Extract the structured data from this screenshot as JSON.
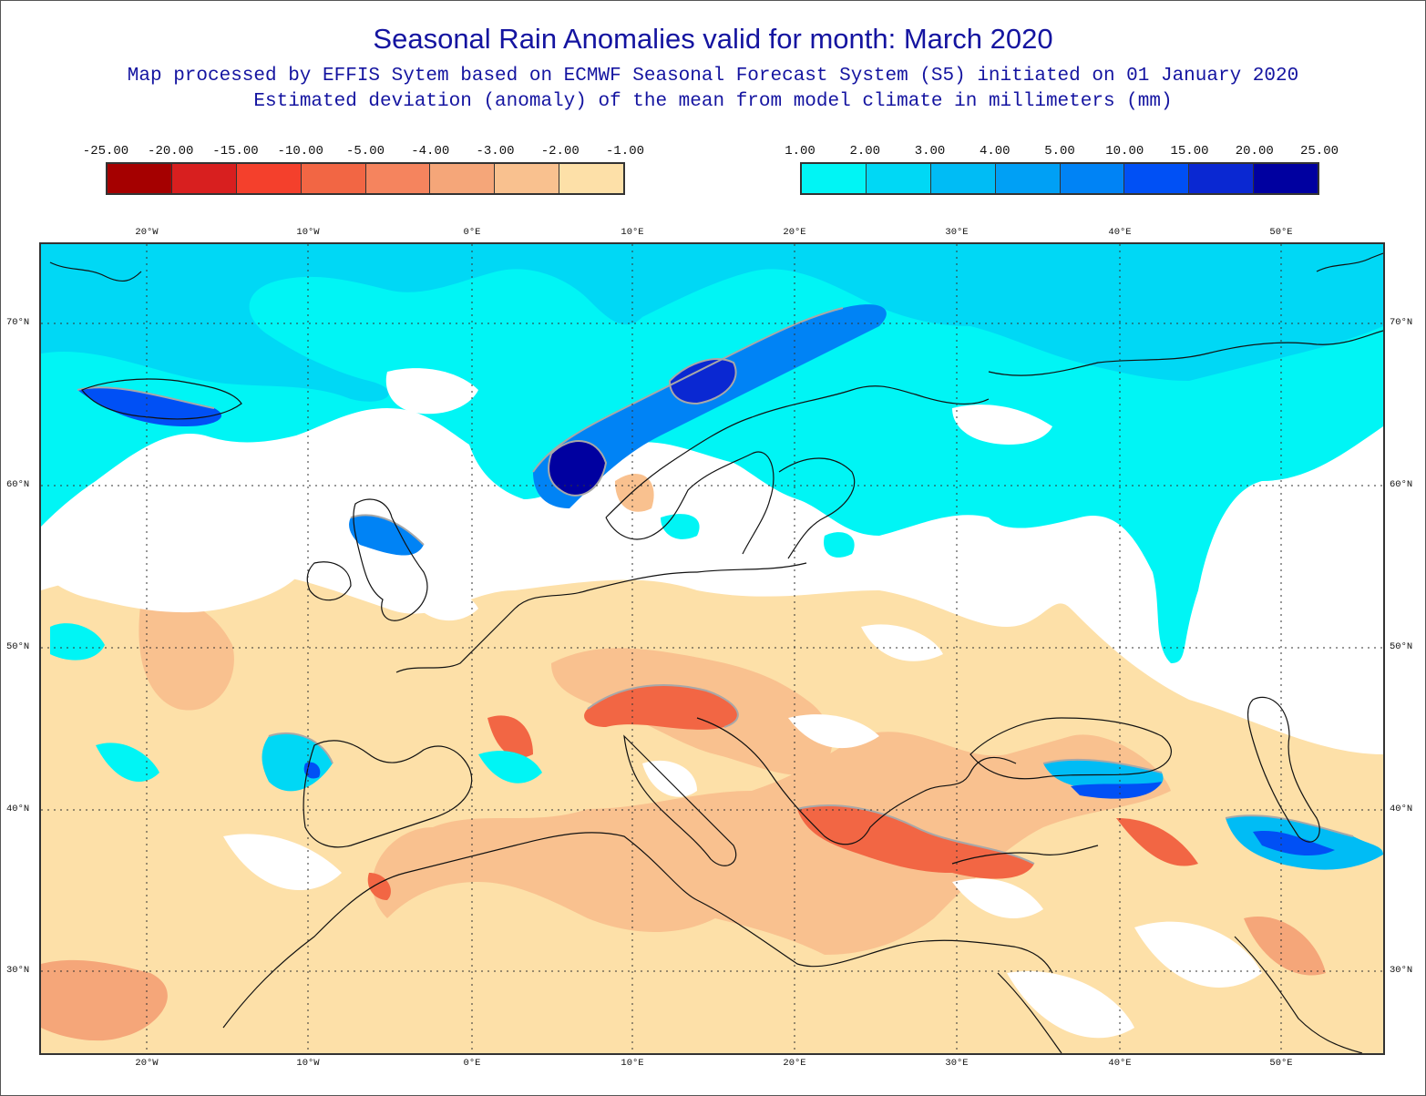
{
  "title": "Seasonal Rain Anomalies valid for month: March 2020",
  "subtitle_1": "Map processed by EFFIS Sytem based on ECMWF Seasonal Forecast System (S5) initiated on 01 January 2020",
  "subtitle_2": "Estimated deviation (anomaly) of the mean from model climate in millimeters (mm)",
  "legend_negative": {
    "labels": [
      "-25.00",
      "-20.00",
      "-15.00",
      "-10.00",
      "-5.00",
      "-4.00",
      "-3.00",
      "-2.00",
      "-1.00"
    ],
    "colors": [
      "#a50000",
      "#d81f1f",
      "#f4402c",
      "#f26644",
      "#f5845e",
      "#f5a679",
      "#f9c18f",
      "#fde0a8"
    ]
  },
  "legend_positive": {
    "labels": [
      "1.00",
      "2.00",
      "3.00",
      "4.00",
      "5.00",
      "10.00",
      "15.00",
      "20.00",
      "25.00"
    ],
    "colors": [
      "#00f5f5",
      "#00d8f5",
      "#00bcf5",
      "#00a0f5",
      "#0083f5",
      "#0050f5",
      "#0a28d2",
      "#0000a0"
    ]
  },
  "axes": {
    "longitudes": [
      "20°W",
      "10°W",
      "0°E",
      "10°E",
      "20°E",
      "30°E",
      "40°E",
      "50°E"
    ],
    "latitudes": [
      "70°N",
      "60°N",
      "50°N",
      "40°N",
      "30°N"
    ]
  },
  "map_colors": {
    "coast": "#111111",
    "contour": "#a8a8a8",
    "grid": "#333333"
  }
}
